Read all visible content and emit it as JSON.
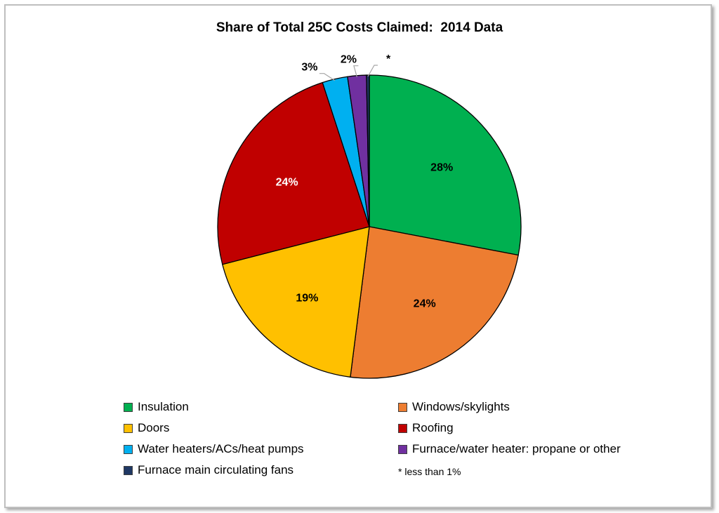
{
  "chart_data": {
    "type": "pie",
    "title": "Share of Total 25C Costs Claimed:  2014 Data",
    "slices": [
      {
        "name": "Insulation",
        "value": 28,
        "label": "28%",
        "color": "#00b050",
        "label_color": "#000000"
      },
      {
        "name": "Windows/skylights",
        "value": 24,
        "label": "24%",
        "color": "#ed7d31",
        "label_color": "#000000"
      },
      {
        "name": "Doors",
        "value": 19,
        "label": "19%",
        "color": "#ffc000",
        "label_color": "#000000"
      },
      {
        "name": "Roofing",
        "value": 24,
        "label": "24%",
        "color": "#c00000",
        "label_color": "#ffffff"
      },
      {
        "name": "Water heaters/ACs/heat pumps",
        "value": 2.7,
        "label": "3%",
        "color": "#00b0f0",
        "label_color": "#000000"
      },
      {
        "name": "Furnace/water heater: propane or other",
        "value": 2.0,
        "label": "2%",
        "color": "#7030a0",
        "label_color": "#000000"
      },
      {
        "name": "Furnace main circulating fans",
        "value": 0.3,
        "label": "*",
        "color": "#1f3864",
        "label_color": "#000000"
      }
    ],
    "legend_placement": "bottom",
    "footnote": "* less than 1%"
  }
}
